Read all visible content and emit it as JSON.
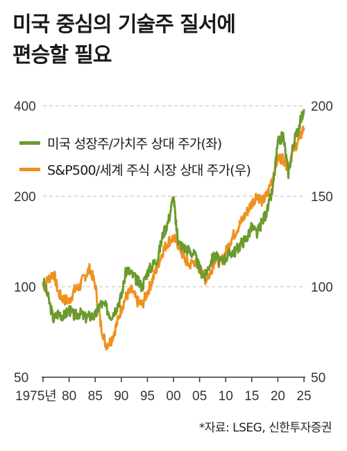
{
  "title": {
    "line1": "미국 중심의 기술주 질서에",
    "line2": "편승할 필요"
  },
  "source": "*자료: LSEG, 신한투자증권",
  "colors": {
    "growth_value": "#6b9a2e",
    "sp500_world": "#f0901e",
    "grid": "#bdbdbd",
    "axis": "#333333"
  },
  "chart_data": {
    "type": "line",
    "title": "미국 중심의 기술주 질서에 편승할 필요",
    "x_tick_labels": [
      "1975년",
      "80",
      "85",
      "90",
      "95",
      "00",
      "05",
      "10",
      "15",
      "20",
      "25"
    ],
    "x_ticks": [
      1975,
      1980,
      1985,
      1990,
      1995,
      2000,
      2005,
      2010,
      2015,
      2020,
      2025
    ],
    "xlim": [
      1975,
      2025
    ],
    "y_left": {
      "scale": "log",
      "ticks": [
        50,
        100,
        200,
        400
      ],
      "tick_labels": [
        "50",
        "100",
        "200",
        "400"
      ],
      "ylim": [
        50,
        400
      ]
    },
    "y_right": {
      "scale": "linear",
      "ticks": [
        50,
        100,
        150,
        200
      ],
      "tick_labels": [
        "50",
        "100",
        "150",
        "200"
      ],
      "ylim": [
        50,
        200
      ]
    },
    "grid": "horizontal dashed",
    "legend_position": "top-left",
    "series": [
      {
        "name": "미국 성장주/가치주 상대 주가(좌)",
        "axis": "left",
        "color": "#6b9a2e",
        "x": [
          1975,
          1976,
          1977,
          1978,
          1979,
          1980,
          1981,
          1982,
          1983,
          1984,
          1985,
          1986,
          1987,
          1988,
          1989,
          1990,
          1991,
          1992,
          1993,
          1994,
          1995,
          1996,
          1997,
          1998,
          1999,
          2000,
          2000.5,
          2001,
          2002,
          2003,
          2004,
          2005,
          2006,
          2007,
          2008,
          2009,
          2010,
          2011,
          2012,
          2013,
          2014,
          2015,
          2016,
          2017,
          2018,
          2019,
          2020,
          2021,
          2022,
          2023,
          2024,
          2025
        ],
        "values": [
          105,
          92,
          78,
          82,
          80,
          84,
          80,
          82,
          79,
          80,
          80,
          88,
          86,
          80,
          85,
          93,
          115,
          110,
          105,
          100,
          112,
          118,
          125,
          150,
          165,
          200,
          160,
          140,
          135,
          132,
          128,
          115,
          108,
          120,
          128,
          120,
          125,
          130,
          132,
          140,
          145,
          158,
          150,
          165,
          180,
          210,
          300,
          320,
          240,
          300,
          340,
          390
        ]
      },
      {
        "name": "S&P500/세계 주식 시장 상대 주가(우)",
        "axis": "right",
        "color": "#f0901e",
        "x": [
          1975,
          1976,
          1977,
          1978,
          1979,
          1980,
          1981,
          1982,
          1983,
          1984,
          1985,
          1986,
          1987,
          1988,
          1989,
          1990,
          1991,
          1992,
          1993,
          1994,
          1995,
          1996,
          1997,
          1998,
          1999,
          2000,
          2001,
          2002,
          2003,
          2004,
          2005,
          2006,
          2007,
          2008,
          2009,
          2010,
          2011,
          2012,
          2013,
          2014,
          2015,
          2016,
          2017,
          2018,
          2019,
          2020,
          2021,
          2022,
          2023,
          2024,
          2025
        ],
        "values": [
          100,
          104,
          108,
          96,
          93,
          92,
          98,
          100,
          106,
          110,
          101,
          80,
          68,
          70,
          78,
          88,
          95,
          98,
          92,
          90,
          97,
          104,
          112,
          120,
          125,
          127,
          123,
          116,
          112,
          114,
          110,
          104,
          107,
          116,
          113,
          119,
          126,
          131,
          136,
          141,
          146,
          151,
          147,
          151,
          161,
          171,
          171,
          166,
          176,
          181,
          188
        ]
      }
    ]
  }
}
